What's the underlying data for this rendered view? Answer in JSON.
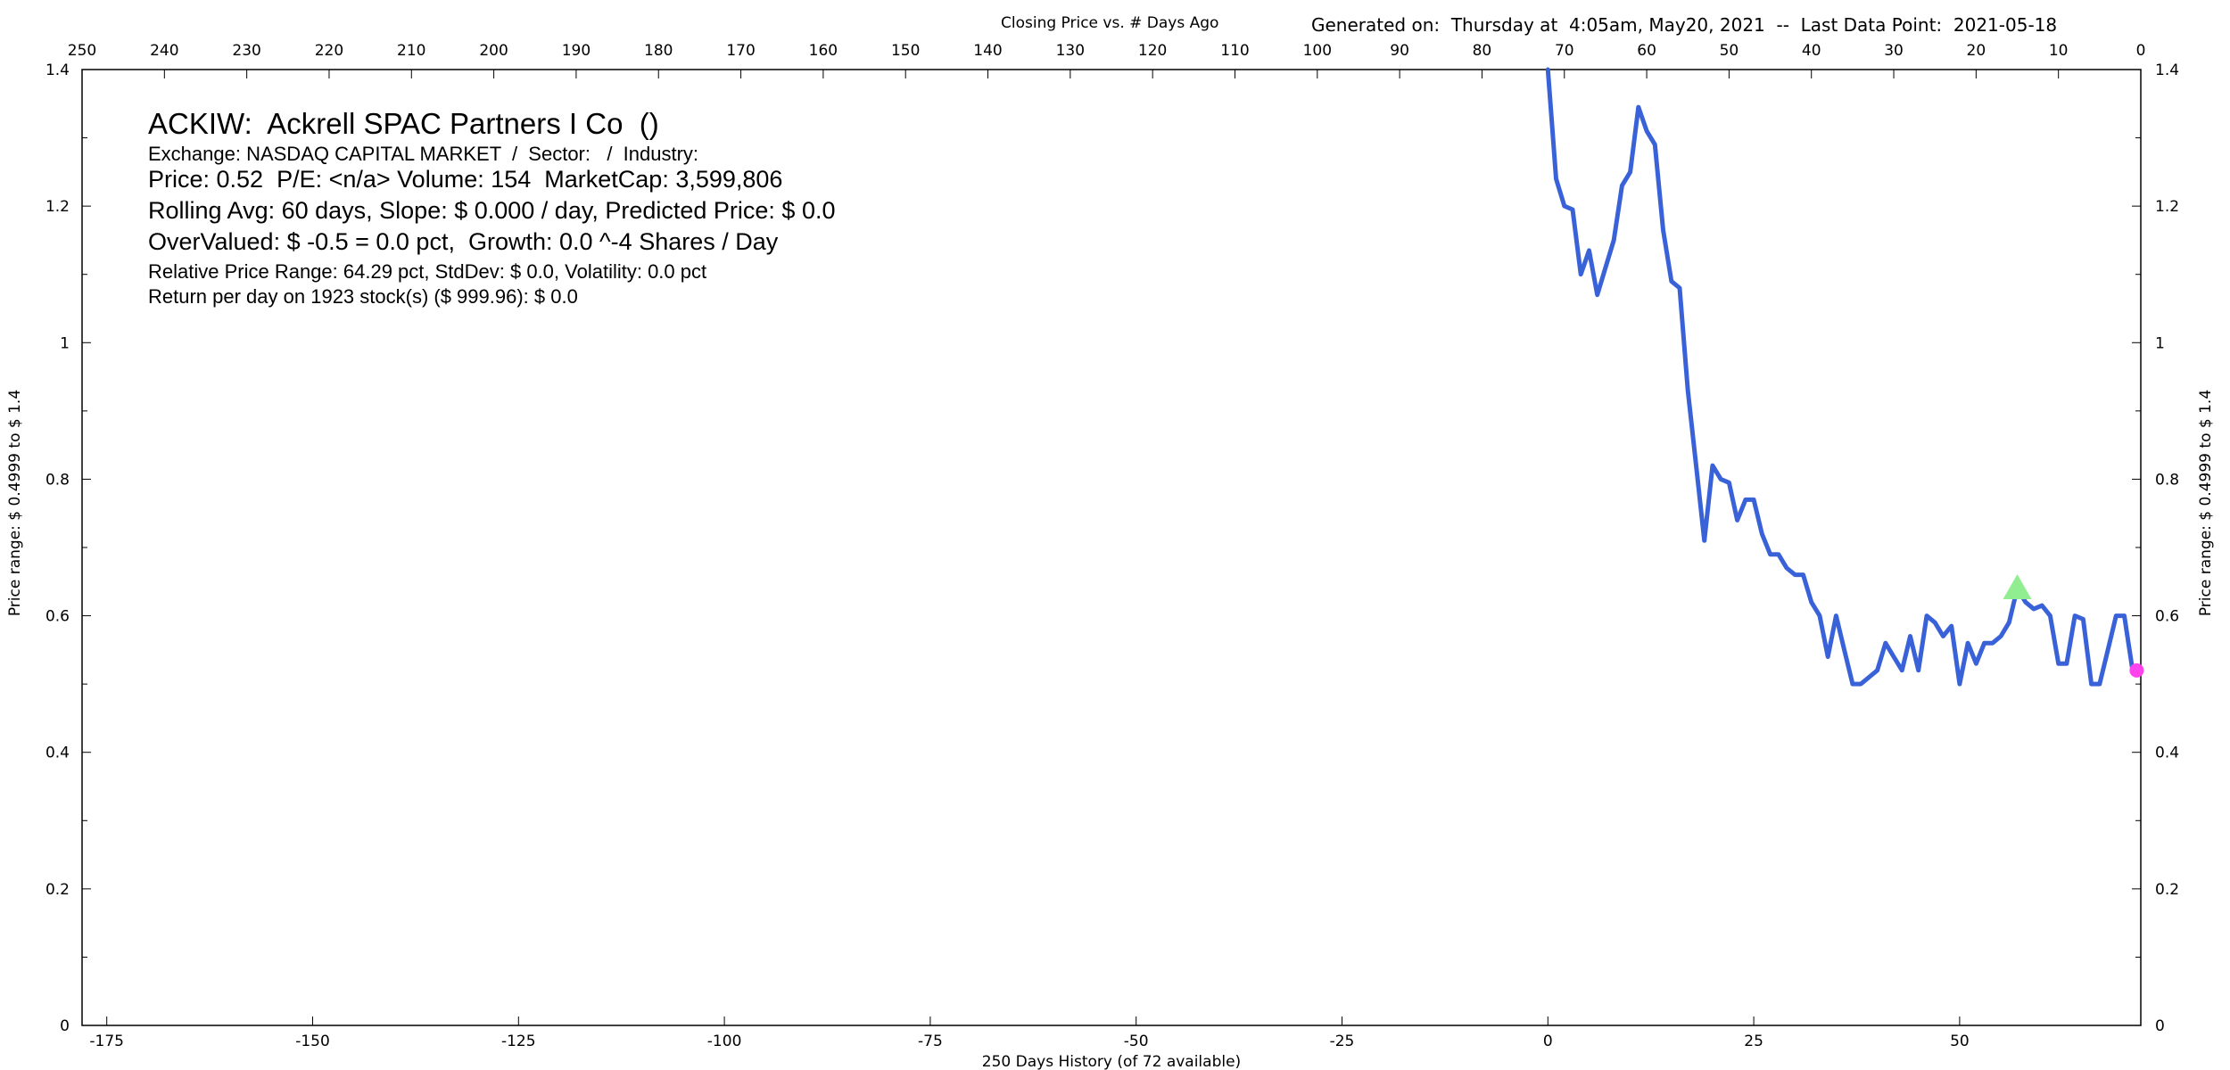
{
  "header": {
    "title": "Closing Price vs. # Days Ago",
    "generated": "Generated on:  Thursday at  4:05am, May20, 2021  --  Last Data Point:  2021-05-18"
  },
  "info": {
    "title": "ACKIW:  Ackrell SPAC Partners I Co  ()",
    "exchange": "Exchange: NASDAQ CAPITAL MARKET  /  Sector:   /  Industry:",
    "price_line": "Price: 0.52  P/E: <n/a> Volume: 154  MarketCap: 3,599,806",
    "rolling_line": "Rolling Avg: 60 days, Slope: $ 0.000 / day, Predicted Price: $ 0.0",
    "overvalued_line": "OverValued: $ -0.5 = 0.0 pct,  Growth: 0.0 ^-4 Shares / Day",
    "range_line": "Relative Price Range: 64.29 pct, StdDev: $ 0.0, Volatility: 0.0 pct",
    "return_line": "Return per day on 1923 stock(s) ($ 999.96): $ 0.0"
  },
  "chart_data": {
    "type": "line",
    "title": "Closing Price vs. # Days Ago",
    "xlabel": "250 Days History (of 72 available)",
    "ylabel": "Price range:  $ 0.4999  to  $ 1.4",
    "xlim": [
      -178,
      72
    ],
    "ylim": [
      0,
      1.4
    ],
    "top_axis_range": [
      250,
      0
    ],
    "top_ticks": [
      250,
      240,
      230,
      220,
      210,
      200,
      190,
      180,
      170,
      160,
      150,
      140,
      130,
      120,
      110,
      100,
      90,
      80,
      70,
      60,
      50,
      40,
      30,
      20,
      10,
      0
    ],
    "bottom_ticks": [
      -175,
      -150,
      -125,
      -100,
      -75,
      -50,
      -25,
      0,
      25,
      50
    ],
    "y_ticks": [
      0,
      0.2,
      0.4,
      0.6,
      0.8,
      1,
      1.2,
      1.4
    ],
    "y_ticks_labels": [
      "0",
      "0.2",
      "0.4",
      "0.6",
      "0.8",
      "1",
      "1.2",
      "1.4"
    ],
    "grid": false,
    "series": [
      {
        "color": "#3a62d8",
        "x": [
          0,
          1,
          2,
          3,
          4,
          5,
          6,
          7,
          8,
          9,
          10,
          11,
          12,
          13,
          14,
          15,
          16,
          17,
          18,
          19,
          20,
          21,
          22,
          23,
          24,
          25,
          26,
          27,
          28,
          29,
          30,
          31,
          32,
          33,
          34,
          35,
          36,
          37,
          38,
          39,
          40,
          41,
          42,
          43,
          44,
          45,
          46,
          47,
          48,
          49,
          50,
          51,
          52,
          53,
          54,
          55,
          56,
          57,
          58,
          59,
          60,
          61,
          62,
          63,
          64,
          65,
          66,
          67,
          68,
          69,
          70,
          71,
          72
        ],
        "values": [
          1.4,
          1.24,
          1.2,
          1.195,
          1.1,
          1.135,
          1.07,
          1.11,
          1.15,
          1.23,
          1.25,
          1.345,
          1.31,
          1.29,
          1.165,
          1.09,
          1.08,
          0.93,
          0.82,
          0.71,
          0.82,
          0.8,
          0.795,
          0.74,
          0.77,
          0.77,
          0.72,
          0.69,
          0.69,
          0.67,
          0.66,
          0.66,
          0.62,
          0.6,
          0.54,
          0.6,
          0.55,
          0.5,
          0.5,
          0.51,
          0.52,
          0.56,
          0.54,
          0.52,
          0.57,
          0.52,
          0.6,
          0.59,
          0.57,
          0.585,
          0.5,
          0.56,
          0.53,
          0.56,
          0.56,
          0.57,
          0.59,
          0.64,
          0.62,
          0.61,
          0.615,
          0.6,
          0.53,
          0.53,
          0.6,
          0.595,
          0.5,
          0.5,
          0.55,
          0.6,
          0.6,
          0.52,
          0.52
        ]
      }
    ],
    "markers": [
      {
        "shape": "triangle",
        "color": "#90ee90",
        "x": 57,
        "y": 0.64
      },
      {
        "shape": "circle",
        "color": "#ff44ee",
        "x": 71.5,
        "y": 0.52
      }
    ]
  }
}
